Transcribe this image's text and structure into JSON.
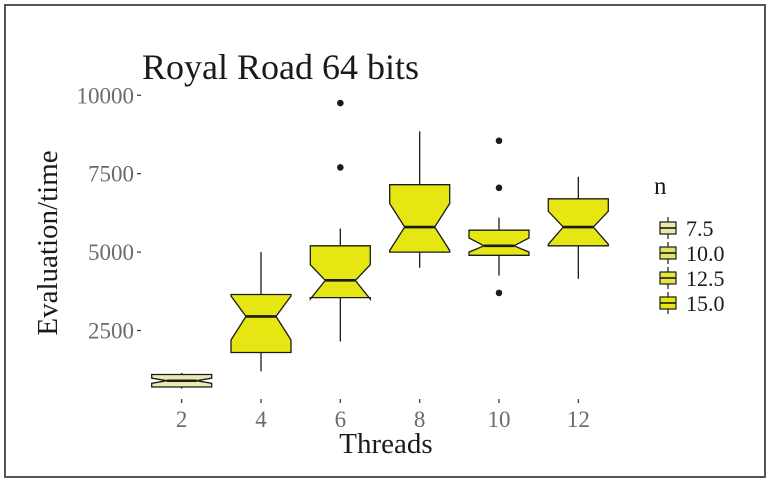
{
  "chart_data": {
    "type": "boxplot",
    "title": "Royal Road 64 bits",
    "xlabel": "Threads",
    "ylabel": "Evaluation/time",
    "categories": [
      "2",
      "4",
      "6",
      "8",
      "10",
      "12"
    ],
    "y_ticks": [
      2500,
      5000,
      7500,
      10000
    ],
    "y_tick_labels": [
      "2500",
      "5000",
      "7500",
      "10000"
    ],
    "ylim": [
      350,
      10550
    ],
    "grid": false,
    "legend": {
      "title": "n",
      "position": "right",
      "entries": [
        {
          "label": "7.5",
          "color": "#eaeaa6"
        },
        {
          "label": "10.0",
          "color": "#e4e46a"
        },
        {
          "label": "12.5",
          "color": "#e6e63c"
        },
        {
          "label": "15.0",
          "color": "#e6e612"
        }
      ]
    },
    "boxes": [
      {
        "x": "2",
        "whisker_low": 650,
        "q1": 700,
        "median": 900,
        "q3": 1100,
        "whisker_high": 1150,
        "notch_low": 820,
        "notch_high": 980,
        "outliers": [],
        "n": 7.5,
        "color": "#e9e9b0"
      },
      {
        "x": "4",
        "whisker_low": 1200,
        "q1": 1800,
        "median": 2950,
        "q3": 3650,
        "whisker_high": 5000,
        "notch_low": 2200,
        "notch_high": 3600,
        "outliers": [],
        "n": 15.0,
        "color": "#e6e612"
      },
      {
        "x": "6",
        "whisker_low": 2150,
        "q1": 3550,
        "median": 4100,
        "q3": 5200,
        "whisker_high": 5750,
        "notch_low": 3500,
        "notch_high": 4600,
        "outliers": [
          7700,
          9750
        ],
        "n": 15.0,
        "color": "#e6e612"
      },
      {
        "x": "8",
        "whisker_low": 4500,
        "q1": 5000,
        "median": 5800,
        "q3": 7150,
        "whisker_high": 8850,
        "notch_low": 5050,
        "notch_high": 6550,
        "outliers": [],
        "n": 15.0,
        "color": "#e6e612"
      },
      {
        "x": "10",
        "whisker_low": 4250,
        "q1": 4900,
        "median": 5200,
        "q3": 5700,
        "whisker_high": 6100,
        "notch_low": 5000,
        "notch_high": 5450,
        "outliers": [
          3700,
          7050,
          8550
        ],
        "n": 15.0,
        "color": "#e6e612"
      },
      {
        "x": "12",
        "whisker_low": 4150,
        "q1": 5200,
        "median": 5800,
        "q3": 6700,
        "whisker_high": 7400,
        "notch_low": 5250,
        "notch_high": 6300,
        "outliers": [],
        "n": 15.0,
        "color": "#e6e612"
      }
    ]
  }
}
